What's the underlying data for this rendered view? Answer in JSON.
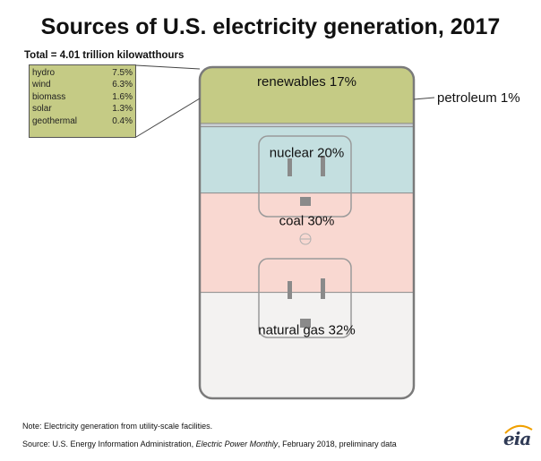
{
  "title": "Sources of U.S. electricity generation, 2017",
  "subtitle": "Total = 4.01 trillion kilowatthours",
  "note": "Note: Electricity generation from utility-scale facilities.",
  "source": {
    "prefix": "Source: U.S. Energy Information Administration, ",
    "publication": "Electric Power Monthly",
    "suffix": ", February 2018, preliminary data"
  },
  "logo": "eia",
  "colors": {
    "renewables": "#c5cb85",
    "petroleum": "#c9cfd2",
    "nuclear": "#c4dfe0",
    "coal": "#f9d8d1",
    "natural_gas": "#f3f2f1",
    "outline": "#808080"
  },
  "chart_data": {
    "type": "stacked-bar",
    "title": "Sources of U.S. electricity generation, 2017",
    "subtitle": "Total = 4.01 trillion kilowatthours",
    "unit": "%",
    "series": [
      {
        "name": "renewables",
        "label": "renewables 17%",
        "value": 17
      },
      {
        "name": "petroleum",
        "label": "petroleum 1%",
        "value": 1
      },
      {
        "name": "nuclear",
        "label": "nuclear 20%",
        "value": 20
      },
      {
        "name": "coal",
        "label": "coal 30%",
        "value": 30
      },
      {
        "name": "natural gas",
        "label": "natural gas 32%",
        "value": 32
      }
    ],
    "renewables_breakdown": [
      {
        "name": "hydro",
        "value": "7.5%"
      },
      {
        "name": "wind",
        "value": "6.3%"
      },
      {
        "name": "biomass",
        "value": "1.6%"
      },
      {
        "name": "solar",
        "value": "1.3%"
      },
      {
        "name": "geothermal",
        "value": "0.4%"
      }
    ]
  }
}
